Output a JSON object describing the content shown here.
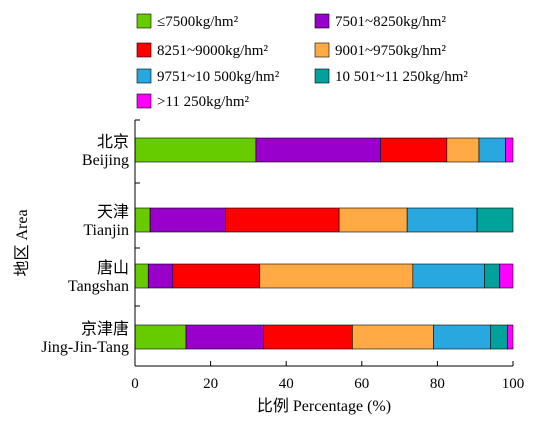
{
  "chart_data": {
    "type": "bar",
    "orientation": "horizontal",
    "stacked": true,
    "title": "",
    "xlabel": "比例 Percentage (%)",
    "ylabel": "地区 Area",
    "xlim": [
      0,
      100
    ],
    "xticks": [
      "0",
      "20",
      "40",
      "60",
      "80",
      "100"
    ],
    "grid": false,
    "legend_position": "top",
    "categories": [
      {
        "zh": "北京",
        "en": "Beijing"
      },
      {
        "zh": "天津",
        "en": "Tianjin"
      },
      {
        "zh": "唐山",
        "en": "Tangshan"
      },
      {
        "zh": "京津唐",
        "en": "Jing-Jin-Tang"
      }
    ],
    "series": [
      {
        "name": "≤7500kg/hm²",
        "color": "#66cc00",
        "values": [
          32,
          4,
          3.5,
          13.5
        ]
      },
      {
        "name": "7501~8250kg/hm²",
        "color": "#9900cc",
        "values": [
          33,
          20,
          6.5,
          20.5
        ]
      },
      {
        "name": "8251~9000kg/hm²",
        "color": "#ff0000",
        "values": [
          17.5,
          30,
          23,
          23.5
        ]
      },
      {
        "name": "9001~9750kg/hm²",
        "color": "#ffaa44",
        "values": [
          8.5,
          18,
          40.5,
          21.5
        ]
      },
      {
        "name": "9751~10 500kg/hm²",
        "color": "#29a8e0",
        "values": [
          7,
          18.5,
          19,
          15
        ]
      },
      {
        "name": "10 501~11 250kg/hm²",
        "color": "#00a29a",
        "values": [
          0,
          9.5,
          4,
          4.5
        ]
      },
      {
        "name": ">11 250kg/hm²",
        "color": "#ff00ff",
        "values": [
          2,
          0,
          3.5,
          1.5
        ]
      }
    ]
  }
}
